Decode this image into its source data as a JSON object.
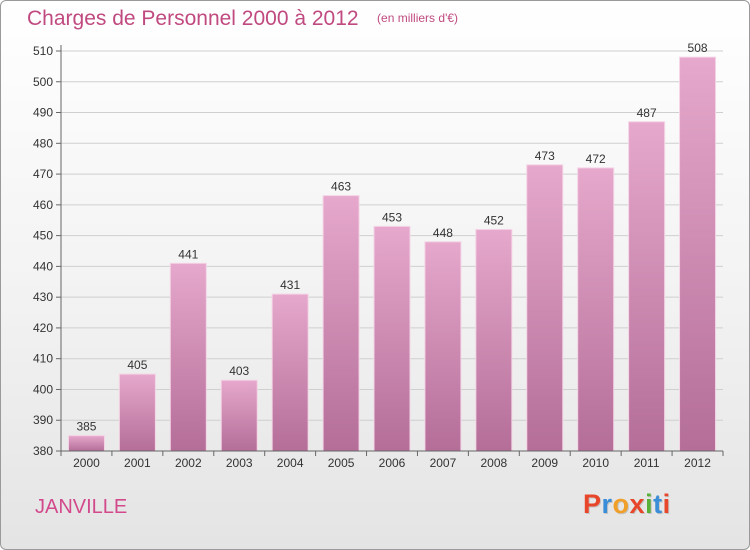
{
  "title": "Charges de Personnel 2000 à 2012",
  "subtitle": "(en milliers d'€)",
  "commune": "JANVILLE",
  "logo": {
    "text": "Proxiti",
    "colors": [
      "#e8462a",
      "#3a8ed8",
      "#f0a02a",
      "#e8462a",
      "#58b038",
      "#3a8ed8",
      "#e8462a"
    ]
  },
  "colors": {
    "bar_top": "#e6a8cc",
    "bar_bottom": "#b46e98",
    "accent": "#c04a80"
  },
  "chart_data": {
    "type": "bar",
    "categories": [
      "2000",
      "2001",
      "2002",
      "2003",
      "2004",
      "2005",
      "2006",
      "2007",
      "2008",
      "2009",
      "2010",
      "2011",
      "2012"
    ],
    "values": [
      385,
      405,
      441,
      403,
      431,
      463,
      453,
      448,
      452,
      473,
      472,
      487,
      508
    ],
    "ylim": [
      380,
      510
    ],
    "yticks": [
      380,
      390,
      400,
      410,
      420,
      430,
      440,
      450,
      460,
      470,
      480,
      490,
      500,
      510
    ],
    "grid": true
  }
}
